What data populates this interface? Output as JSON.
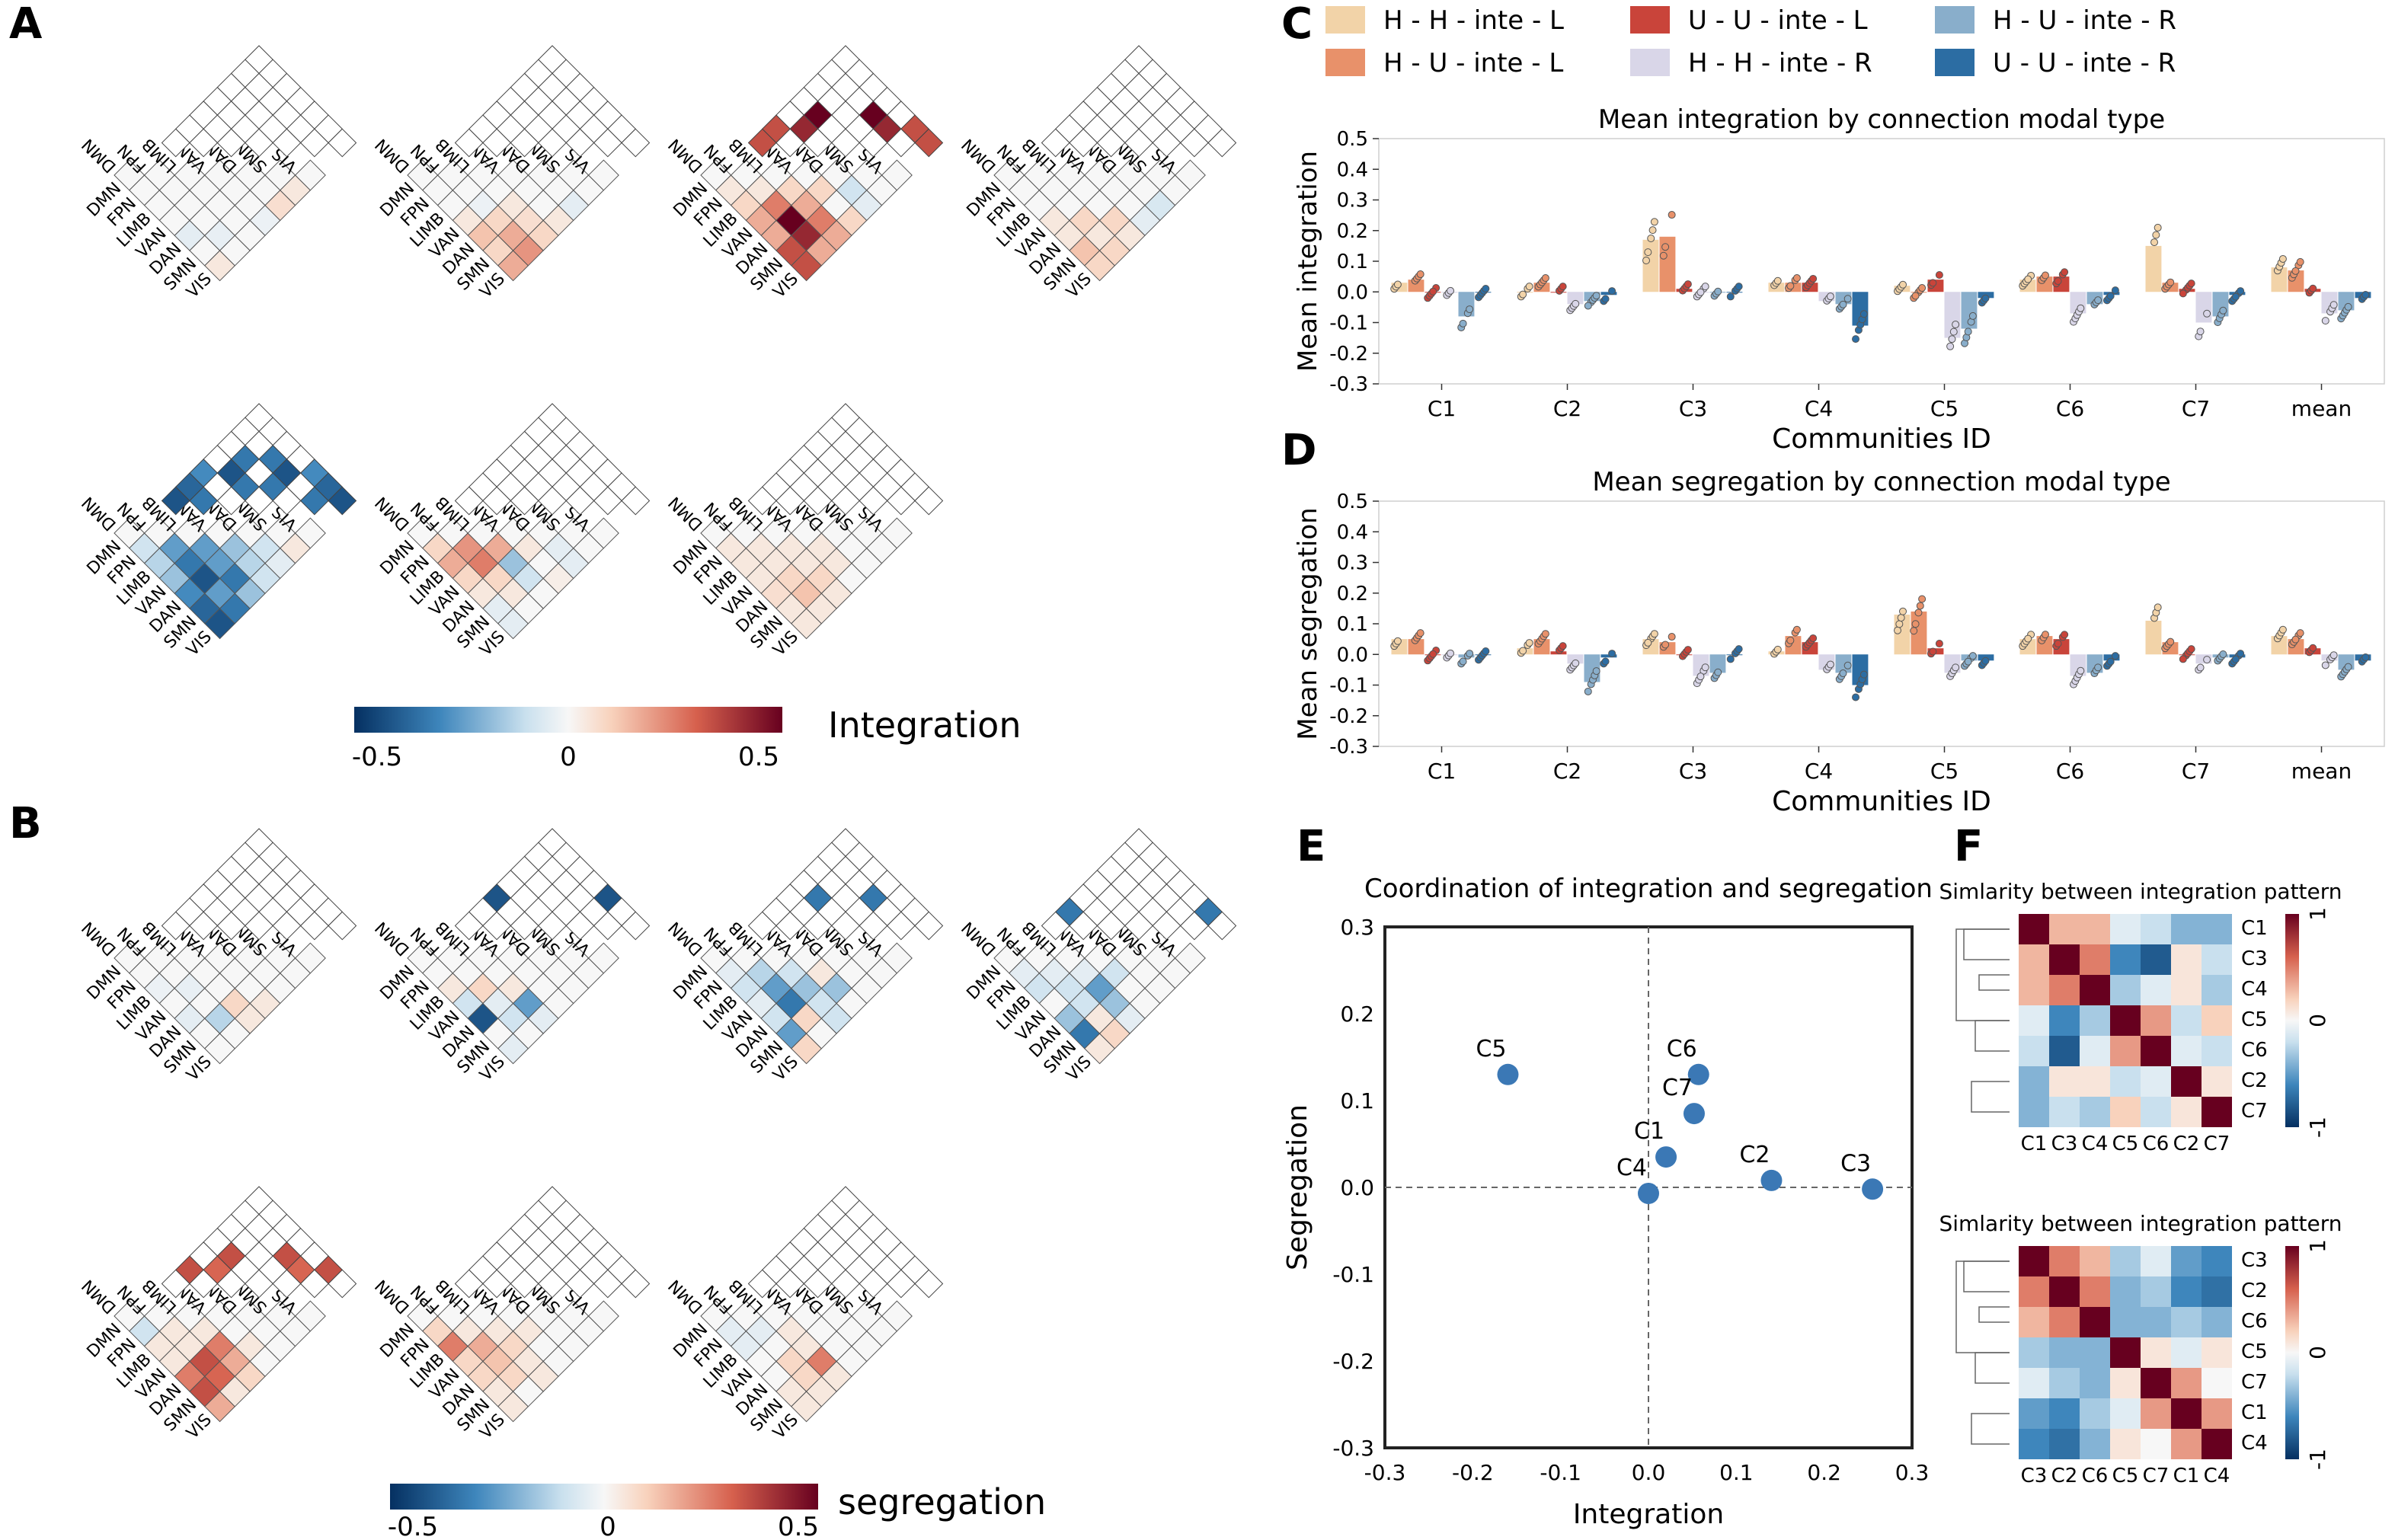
{
  "panel_labels": {
    "A": "A",
    "B": "B",
    "C": "C",
    "D": "D",
    "E": "E",
    "F": "F"
  },
  "networks": [
    "DMN",
    "FPN",
    "LIMB",
    "VAN",
    "DAN",
    "SMN",
    "VIS"
  ],
  "colorbar_A": {
    "label": "Integration",
    "ticks": [
      "-0.5",
      "0",
      "0.5"
    ]
  },
  "colorbar_B": {
    "label": "segregation",
    "ticks": [
      "-0.5",
      "0",
      "0.5"
    ]
  },
  "legend": {
    "items": [
      {
        "label": "H - H - inte - L",
        "color": "#f2d3a8"
      },
      {
        "label": "U - U - inte - L",
        "color": "#c9443a"
      },
      {
        "label": "H - U - inte - R",
        "color": "#89aecb"
      },
      {
        "label": "H - U - inte - L",
        "color": "#e8916a"
      },
      {
        "label": "H - H - inte - R",
        "color": "#d9d6e8"
      },
      {
        "label": "U - U - inte - R",
        "color": "#2c6da3"
      }
    ]
  },
  "colors": {
    "accent_blue": "#3b78b5",
    "dark_red": "#67001f",
    "dark_blue": "#053061"
  },
  "chart_data": [
    {
      "id": "C",
      "type": "bar",
      "title": "Mean integration by connection modal type",
      "xlabel": "Communities ID",
      "ylabel": "Mean integration",
      "ylim": [
        -0.3,
        0.5
      ],
      "yticks": [
        "0.5",
        "0.4",
        "0.3",
        "0.2",
        "0.1",
        "0.0",
        "-0.1",
        "-0.2",
        "-0.3"
      ],
      "categories": [
        "C1",
        "C2",
        "C3",
        "C4",
        "C5",
        "C6",
        "C7",
        "mean"
      ],
      "series": [
        {
          "name": "H - H - inte - L",
          "values": [
            0.03,
            0.0,
            0.17,
            0.03,
            0.02,
            0.04,
            0.15,
            0.08
          ]
        },
        {
          "name": "H - U - inte - L",
          "values": [
            0.04,
            0.03,
            0.18,
            0.03,
            0.0,
            0.05,
            0.03,
            0.07
          ]
        },
        {
          "name": "U - U - inte - L",
          "values": [
            0.0,
            0.0,
            0.01,
            0.03,
            0.04,
            0.05,
            0.01,
            0.01
          ]
        },
        {
          "name": "H - H - inte - R",
          "values": [
            0.0,
            -0.04,
            0.0,
            -0.03,
            -0.15,
            -0.07,
            -0.1,
            -0.07
          ]
        },
        {
          "name": "H - U - inte - R",
          "values": [
            -0.08,
            -0.03,
            0.0,
            -0.04,
            -0.12,
            -0.04,
            -0.08,
            -0.06
          ]
        },
        {
          "name": "U - U - inte - R",
          "values": [
            0.0,
            -0.01,
            0.0,
            -0.11,
            -0.02,
            -0.01,
            -0.01,
            -0.02
          ]
        }
      ]
    },
    {
      "id": "D",
      "type": "bar",
      "title": "Mean segregation by connection modal type",
      "xlabel": "Communities ID",
      "ylabel": "Mean segregation",
      "ylim": [
        -0.3,
        0.5
      ],
      "yticks": [
        "0.5",
        "0.4",
        "0.3",
        "0.2",
        "0.1",
        "0.0",
        "-0.1",
        "-0.2",
        "-0.3"
      ],
      "categories": [
        "C1",
        "C2",
        "C3",
        "C4",
        "C5",
        "C6",
        "C7",
        "mean"
      ],
      "series": [
        {
          "name": "H - H - inte - L",
          "values": [
            0.05,
            0.02,
            0.05,
            0.01,
            0.13,
            0.05,
            0.11,
            0.06
          ]
        },
        {
          "name": "H - U - inte - L",
          "values": [
            0.05,
            0.05,
            0.04,
            0.06,
            0.14,
            0.06,
            0.04,
            0.05
          ]
        },
        {
          "name": "U - U - inte - L",
          "values": [
            0.0,
            0.01,
            0.0,
            0.04,
            0.02,
            0.05,
            0.0,
            0.02
          ]
        },
        {
          "name": "H - H - inte - R",
          "values": [
            0.0,
            -0.03,
            -0.07,
            -0.05,
            -0.06,
            -0.07,
            -0.03,
            -0.02
          ]
        },
        {
          "name": "H - U - inte - R",
          "values": [
            -0.01,
            -0.09,
            -0.06,
            -0.06,
            -0.02,
            -0.06,
            -0.01,
            -0.05
          ]
        },
        {
          "name": "U - U - inte - R",
          "values": [
            0.0,
            -0.01,
            0.0,
            -0.1,
            -0.02,
            -0.02,
            -0.01,
            -0.02
          ]
        }
      ]
    },
    {
      "id": "E",
      "type": "scatter",
      "title": "Coordination of integration and segregation",
      "xlabel": "Integration",
      "ylabel": "Segregation",
      "xlim": [
        -0.3,
        0.3
      ],
      "ylim": [
        -0.3,
        0.3
      ],
      "ticks": [
        "-0.3",
        "-0.2",
        "-0.1",
        "0.0",
        "0.1",
        "0.2",
        "0.3"
      ],
      "points": [
        {
          "label": "C5",
          "x": -0.16,
          "y": 0.13
        },
        {
          "label": "C6",
          "x": 0.057,
          "y": 0.13
        },
        {
          "label": "C7",
          "x": 0.052,
          "y": 0.085
        },
        {
          "label": "C1",
          "x": 0.02,
          "y": 0.035
        },
        {
          "label": "C4",
          "x": 0.0,
          "y": -0.007
        },
        {
          "label": "C2",
          "x": 0.14,
          "y": 0.008
        },
        {
          "label": "C3",
          "x": 0.255,
          "y": -0.002
        }
      ]
    },
    {
      "id": "F1",
      "type": "heatmap",
      "title": "Simlarity between integration pattern",
      "rows": [
        "C1",
        "C3",
        "C4",
        "C5",
        "C6",
        "C2",
        "C7"
      ],
      "cols": [
        "C1",
        "C3",
        "C4",
        "C5",
        "C6",
        "C2",
        "C7"
      ],
      "colorbar_ticks": [
        "1",
        "0",
        "-1"
      ],
      "values": [
        [
          1.0,
          0.3,
          0.3,
          -0.1,
          -0.2,
          -0.4,
          -0.4
        ],
        [
          0.3,
          1.0,
          0.5,
          -0.6,
          -0.8,
          0.1,
          -0.2
        ],
        [
          0.3,
          0.5,
          1.0,
          -0.3,
          -0.1,
          0.1,
          -0.3
        ],
        [
          -0.1,
          -0.6,
          -0.3,
          1.0,
          0.4,
          -0.2,
          0.2
        ],
        [
          -0.2,
          -0.8,
          -0.1,
          0.4,
          1.0,
          -0.1,
          -0.2
        ],
        [
          -0.4,
          0.1,
          0.1,
          -0.2,
          -0.1,
          1.0,
          0.1
        ],
        [
          -0.4,
          -0.2,
          -0.3,
          0.2,
          -0.2,
          0.1,
          1.0
        ]
      ]
    },
    {
      "id": "F2",
      "type": "heatmap",
      "title": "Simlarity between integration pattern",
      "rows": [
        "C3",
        "C2",
        "C6",
        "C5",
        "C7",
        "C1",
        "C4"
      ],
      "cols": [
        "C3",
        "C2",
        "C6",
        "C5",
        "C7",
        "C1",
        "C4"
      ],
      "colorbar_ticks": [
        "1",
        "0",
        "-1"
      ],
      "values": [
        [
          1.0,
          0.5,
          0.3,
          -0.3,
          -0.1,
          -0.5,
          -0.6
        ],
        [
          0.5,
          1.0,
          0.5,
          -0.4,
          -0.3,
          -0.6,
          -0.7
        ],
        [
          0.3,
          0.5,
          1.0,
          -0.4,
          -0.4,
          -0.3,
          -0.4
        ],
        [
          -0.3,
          -0.4,
          -0.4,
          1.0,
          0.1,
          -0.1,
          0.1
        ],
        [
          -0.1,
          -0.3,
          -0.4,
          0.1,
          1.0,
          0.4,
          0.0
        ],
        [
          -0.5,
          -0.6,
          -0.3,
          -0.1,
          0.4,
          1.0,
          0.4
        ],
        [
          -0.6,
          -0.7,
          -0.4,
          0.1,
          0.0,
          0.4,
          1.0
        ]
      ]
    }
  ],
  "matrices_A": [
    [
      [
        0,
        0,
        0,
        0,
        0,
        0,
        0
      ],
      [
        0,
        0,
        0,
        0,
        0,
        0,
        0
      ],
      [
        0,
        0,
        0,
        0,
        0,
        0,
        0
      ],
      [
        0,
        0,
        0,
        0,
        0,
        0,
        0
      ],
      [
        -0.05,
        0,
        0,
        0,
        0,
        0,
        0
      ],
      [
        0,
        -0.04,
        0,
        0,
        0,
        0,
        0
      ],
      [
        0.05,
        0,
        0,
        -0.03,
        0.08,
        0.05,
        0
      ]
    ],
    [
      [
        0,
        0,
        0,
        0,
        0,
        0,
        0
      ],
      [
        0,
        0,
        0,
        0,
        0,
        0,
        0
      ],
      [
        0,
        0,
        0,
        0,
        0,
        0,
        0
      ],
      [
        0.05,
        -0.03,
        0,
        0,
        0,
        0,
        0
      ],
      [
        0.15,
        0.1,
        0.05,
        0,
        0,
        0,
        0
      ],
      [
        0.1,
        0.2,
        0.08,
        0,
        0,
        0,
        0
      ],
      [
        0.2,
        0.25,
        0.1,
        0.05,
        -0.05,
        0,
        0
      ]
    ],
    [
      [
        0,
        0,
        0,
        0,
        0,
        0,
        0
      ],
      [
        0.05,
        0,
        0,
        0,
        0,
        0,
        0
      ],
      [
        0.1,
        0.05,
        0,
        0,
        0,
        0,
        0
      ],
      [
        0.2,
        0.3,
        0.1,
        0,
        0,
        0,
        0
      ],
      [
        0.2,
        0.6,
        0.2,
        0.1,
        0,
        0,
        0
      ],
      [
        0.4,
        0.5,
        0.3,
        0,
        -0.1,
        0,
        0
      ],
      [
        0.4,
        0.2,
        0.2,
        0.1,
        -0.05,
        0,
        0
      ]
    ],
    [
      [
        0,
        0,
        0,
        0,
        0,
        0,
        0
      ],
      [
        0,
        0,
        0,
        0,
        0,
        0,
        0
      ],
      [
        0,
        0,
        0,
        0,
        0,
        0,
        0
      ],
      [
        0.05,
        0,
        0,
        0,
        0,
        0,
        0
      ],
      [
        0.05,
        0.1,
        0,
        0,
        0,
        0,
        0
      ],
      [
        0.15,
        0.05,
        0.1,
        0,
        0,
        0,
        0
      ],
      [
        0.1,
        0.1,
        0.05,
        -0.05,
        -0.08,
        0,
        0
      ]
    ],
    [
      [
        0,
        0,
        0,
        0,
        0,
        0,
        0
      ],
      [
        -0.1,
        0,
        0,
        0,
        0,
        0,
        0
      ],
      [
        -0.15,
        -0.3,
        0,
        0,
        0,
        0,
        0
      ],
      [
        -0.2,
        -0.4,
        -0.3,
        0,
        0,
        0,
        0
      ],
      [
        -0.35,
        -0.5,
        -0.3,
        -0.2,
        0,
        0,
        0
      ],
      [
        -0.45,
        -0.3,
        -0.4,
        -0.15,
        -0.1,
        0,
        0
      ],
      [
        -0.5,
        -0.4,
        -0.2,
        -0.1,
        -0.05,
        0.05,
        0
      ]
    ],
    [
      [
        0,
        0,
        0,
        0,
        0,
        0,
        0
      ],
      [
        0.1,
        0,
        0,
        0,
        0,
        0,
        0
      ],
      [
        0.2,
        0.25,
        0,
        0,
        0,
        0,
        0
      ],
      [
        0.1,
        0.3,
        0.2,
        0,
        0,
        0,
        0
      ],
      [
        0.05,
        0.1,
        -0.2,
        0.05,
        0,
        0,
        0
      ],
      [
        -0.05,
        0.05,
        -0.1,
        0,
        -0.05,
        0,
        0
      ],
      [
        -0.05,
        0,
        0,
        0.03,
        -0.05,
        0,
        0
      ]
    ],
    [
      [
        0,
        0,
        0,
        0,
        0,
        0,
        0
      ],
      [
        0.05,
        0,
        0,
        0,
        0,
        0,
        0
      ],
      [
        0.05,
        0.05,
        0,
        0,
        0,
        0,
        0
      ],
      [
        0.05,
        0.05,
        0.05,
        0,
        0,
        0,
        0
      ],
      [
        0.08,
        0.1,
        0.05,
        0.05,
        0,
        0,
        0
      ],
      [
        0.05,
        0.15,
        0.1,
        0.05,
        0,
        0,
        0
      ],
      [
        0.05,
        0.05,
        0.05,
        0,
        0,
        0,
        0
      ]
    ]
  ],
  "matrices_B": [
    [
      [
        0,
        0,
        0,
        0,
        0,
        0,
        0
      ],
      [
        0,
        0,
        0,
        0,
        0,
        0,
        0
      ],
      [
        -0.03,
        0,
        0,
        0,
        0,
        0,
        0
      ],
      [
        0,
        -0.04,
        0,
        0,
        0,
        0,
        0
      ],
      [
        -0.05,
        0,
        0,
        0,
        0,
        0,
        0
      ],
      [
        0,
        -0.15,
        0.1,
        0,
        0,
        0,
        0
      ],
      [
        0,
        0,
        0.05,
        0.05,
        0,
        0,
        0
      ]
    ],
    [
      [
        0,
        0,
        0,
        0,
        0,
        0,
        0
      ],
      [
        0,
        0,
        0,
        0,
        0,
        0,
        0
      ],
      [
        0.05,
        0,
        0,
        0,
        0,
        0,
        0
      ],
      [
        -0.1,
        0.1,
        0,
        0,
        0,
        0,
        0
      ],
      [
        -0.5,
        -0.05,
        0.05,
        0,
        0,
        0,
        0
      ],
      [
        0,
        -0.1,
        -0.3,
        0,
        0,
        0,
        0
      ],
      [
        -0.05,
        0,
        -0.05,
        0,
        0,
        0,
        0
      ]
    ],
    [
      [
        0,
        0,
        0,
        0,
        0,
        0,
        0
      ],
      [
        -0.05,
        0,
        0,
        0,
        0,
        0,
        0
      ],
      [
        -0.1,
        -0.15,
        0,
        0,
        0,
        0,
        0
      ],
      [
        -0.05,
        -0.3,
        -0.1,
        0,
        0,
        0,
        0
      ],
      [
        -0.1,
        -0.4,
        -0.2,
        0.05,
        0,
        0,
        0
      ],
      [
        -0.3,
        0.1,
        -0.1,
        -0.2,
        0,
        0,
        0
      ],
      [
        0.1,
        0,
        -0.1,
        0,
        0,
        0,
        0
      ]
    ],
    [
      [
        0,
        0,
        0,
        0,
        0,
        0,
        0
      ],
      [
        -0.05,
        0,
        0,
        0,
        0,
        0,
        0
      ],
      [
        -0.1,
        -0.05,
        0,
        0,
        0,
        0,
        0
      ],
      [
        0,
        -0.1,
        -0.05,
        0,
        0,
        0,
        0
      ],
      [
        -0.2,
        -0.1,
        -0.3,
        -0.1,
        0,
        0,
        0
      ],
      [
        -0.4,
        0.05,
        -0.2,
        0,
        0,
        0,
        0
      ],
      [
        0.05,
        0.1,
        -0.05,
        0,
        0,
        0,
        0
      ]
    ],
    [
      [
        0,
        0,
        0,
        0,
        0,
        0,
        0
      ],
      [
        -0.1,
        0,
        0,
        0,
        0,
        0,
        0
      ],
      [
        0.05,
        0.05,
        0,
        0,
        0,
        0,
        0
      ],
      [
        0.05,
        0.05,
        0.05,
        0,
        0,
        0,
        0
      ],
      [
        0.3,
        0.4,
        0.3,
        0,
        0,
        0,
        0
      ],
      [
        0.4,
        0.35,
        0.2,
        0.05,
        0,
        0,
        0
      ],
      [
        0.2,
        0.05,
        0.1,
        0,
        0,
        0,
        0
      ]
    ],
    [
      [
        0,
        0,
        0,
        0,
        0,
        0,
        0
      ],
      [
        0.1,
        0,
        0,
        0,
        0,
        0,
        0
      ],
      [
        0.3,
        0.05,
        0,
        0,
        0,
        0,
        0
      ],
      [
        0.1,
        0.2,
        0.05,
        0,
        0,
        0,
        0
      ],
      [
        0.1,
        0.15,
        0.1,
        0.05,
        0,
        0,
        0
      ],
      [
        0.05,
        0.1,
        0.05,
        0,
        0,
        0,
        0
      ],
      [
        0.05,
        0,
        0.05,
        0,
        0,
        0,
        0
      ]
    ],
    [
      [
        0,
        0,
        0,
        0,
        0,
        0,
        0
      ],
      [
        -0.05,
        0,
        0,
        0,
        0,
        0,
        0
      ],
      [
        -0.05,
        -0.05,
        0,
        0,
        0,
        0,
        0
      ],
      [
        0,
        0,
        0.05,
        0,
        0,
        0,
        0
      ],
      [
        0,
        0.1,
        0.05,
        0,
        0,
        0,
        0
      ],
      [
        0.05,
        0.1,
        0.3,
        0,
        0,
        0,
        0
      ],
      [
        0.05,
        0.05,
        0.05,
        0,
        0,
        0,
        0
      ]
    ]
  ]
}
